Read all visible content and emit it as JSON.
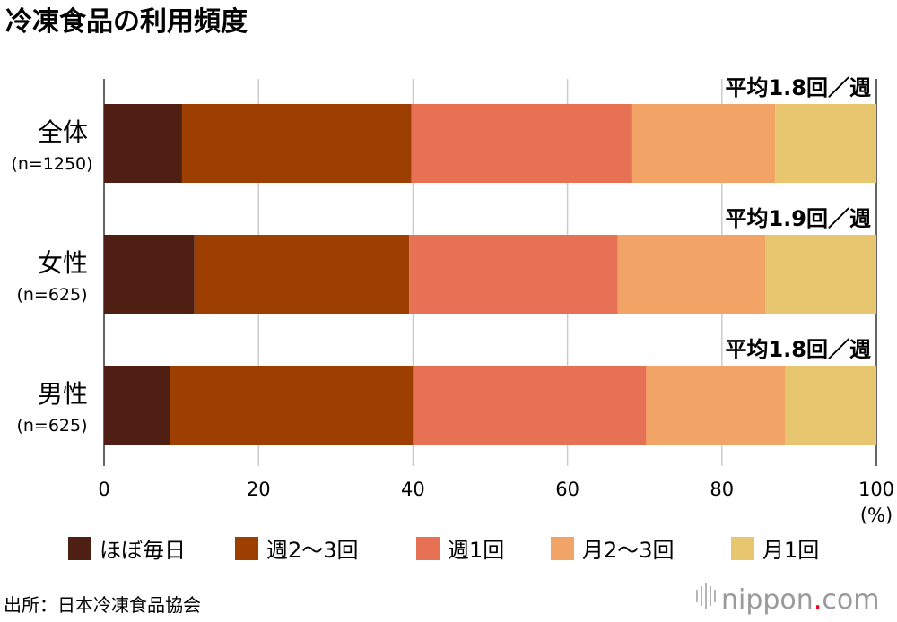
{
  "title": "冷凍食品の利用頻度",
  "unit_label": "(%)",
  "source": "出所：日本冷凍食品協会",
  "brand": {
    "name": "nippon",
    "dot": ".",
    "tld": "com",
    "dot_color": "#e60012"
  },
  "chart_data": {
    "type": "bar",
    "orientation": "horizontal",
    "stacked": true,
    "categories": [
      {
        "label": "全体",
        "n": "(n=1250)",
        "average": "平均1.8回／週"
      },
      {
        "label": "女性",
        "n": "(n=625)",
        "average": "平均1.9回／週"
      },
      {
        "label": "男性",
        "n": "(n=625)",
        "average": "平均1.8回／週"
      }
    ],
    "series": [
      {
        "name": "ほぼ毎日",
        "color": "#4f1f14",
        "values": [
          10.1,
          11.7,
          8.5
        ]
      },
      {
        "name": "週2〜3回",
        "color": "#9c3f00",
        "values": [
          29.7,
          27.8,
          31.5
        ]
      },
      {
        "name": "週1回",
        "color": "#e67154",
        "values": [
          28.6,
          27.0,
          30.2
        ]
      },
      {
        "name": "月2〜3回",
        "color": "#f1a465",
        "values": [
          18.5,
          19.1,
          18.0
        ]
      },
      {
        "name": "月1回",
        "color": "#e8c56f",
        "values": [
          13.1,
          14.4,
          11.8
        ]
      }
    ],
    "xlim": [
      0,
      100
    ],
    "xticks": [
      0,
      20,
      40,
      60,
      80,
      100
    ],
    "grid": true,
    "legend_position": "bottom"
  }
}
